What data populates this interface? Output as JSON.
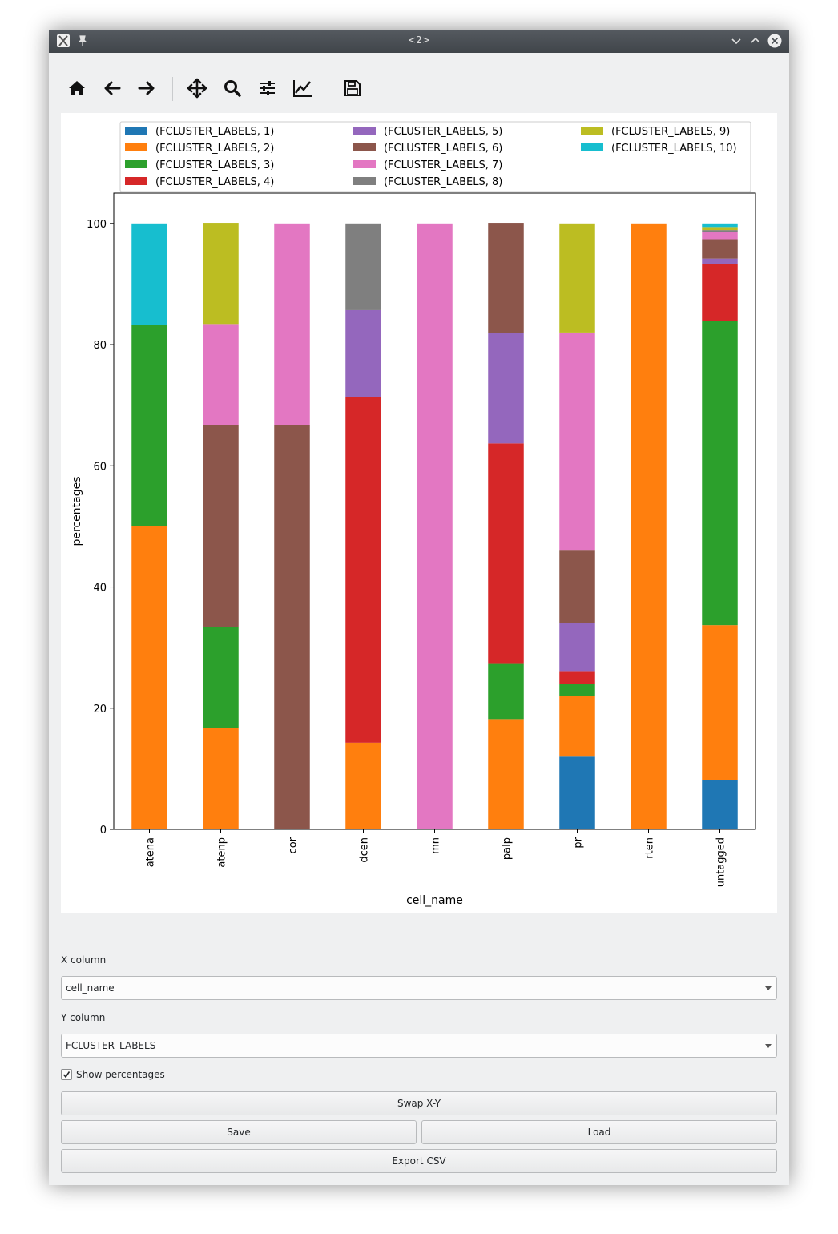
{
  "window": {
    "title": "<2>"
  },
  "toolbar": {
    "tools": [
      {
        "name": "home-icon"
      },
      {
        "name": "back-arrow-icon"
      },
      {
        "name": "forward-arrow-icon"
      },
      {
        "name": "pan-icon"
      },
      {
        "name": "zoom-icon"
      },
      {
        "name": "configure-subplots-icon"
      },
      {
        "name": "edit-axis-icon"
      },
      {
        "name": "save-figure-icon"
      }
    ]
  },
  "chart_data": {
    "type": "bar",
    "stacked": true,
    "xlabel": "cell_name",
    "ylabel": "percentages",
    "ylim": [
      0,
      105
    ],
    "yticks": [
      0,
      20,
      40,
      60,
      80,
      100
    ],
    "grid": false,
    "legend_position": "top (above plot area)",
    "categories": [
      "atena",
      "atenp",
      "cor",
      "dcen",
      "mn",
      "palp",
      "pr",
      "rten",
      "untagged"
    ],
    "series": [
      {
        "name": "(FCLUSTER_LABELS, 1)",
        "color": "#1f77b4",
        "values": [
          0,
          0,
          0,
          0,
          0,
          0,
          12,
          0,
          8.1
        ]
      },
      {
        "name": "(FCLUSTER_LABELS, 2)",
        "color": "#ff7f0e",
        "values": [
          50,
          16.7,
          0,
          14.3,
          0,
          18.2,
          10,
          100,
          25.6
        ]
      },
      {
        "name": "(FCLUSTER_LABELS, 3)",
        "color": "#2ca02c",
        "values": [
          33.3,
          16.7,
          0,
          0,
          0,
          9.1,
          2,
          0,
          50.2
        ]
      },
      {
        "name": "(FCLUSTER_LABELS, 4)",
        "color": "#d62728",
        "values": [
          0,
          0,
          0,
          57.1,
          0,
          36.4,
          2,
          0,
          9.4
        ]
      },
      {
        "name": "(FCLUSTER_LABELS, 5)",
        "color": "#9467bd",
        "values": [
          0,
          0,
          0,
          14.3,
          0,
          18.2,
          8,
          0,
          0.9
        ]
      },
      {
        "name": "(FCLUSTER_LABELS, 6)",
        "color": "#8c564b",
        "values": [
          0,
          33.3,
          66.7,
          0,
          0,
          18.2,
          12,
          0,
          3.2
        ]
      },
      {
        "name": "(FCLUSTER_LABELS, 7)",
        "color": "#e377c2",
        "values": [
          0,
          16.7,
          33.3,
          0,
          100,
          0,
          36,
          0,
          1.2
        ]
      },
      {
        "name": "(FCLUSTER_LABELS, 8)",
        "color": "#7f7f7f",
        "values": [
          0,
          0,
          0,
          14.3,
          0,
          0,
          0,
          0,
          0.3
        ]
      },
      {
        "name": "(FCLUSTER_LABELS, 9)",
        "color": "#bcbd22",
        "values": [
          0,
          16.7,
          0,
          0,
          0,
          0,
          18,
          0,
          0.5
        ]
      },
      {
        "name": "(FCLUSTER_LABELS, 10)",
        "color": "#17becf",
        "values": [
          16.7,
          0,
          0,
          0,
          0,
          0,
          0,
          0,
          0.6
        ]
      }
    ]
  },
  "controls": {
    "x_column_label": "X column",
    "x_column_value": "cell_name",
    "y_column_label": "Y column",
    "y_column_value": "FCLUSTER_LABELS",
    "show_percentages_label": "Show percentages",
    "show_percentages_checked": true,
    "swap_label": "Swap X-Y",
    "save_label": "Save",
    "load_label": "Load",
    "export_label": "Export CSV"
  }
}
